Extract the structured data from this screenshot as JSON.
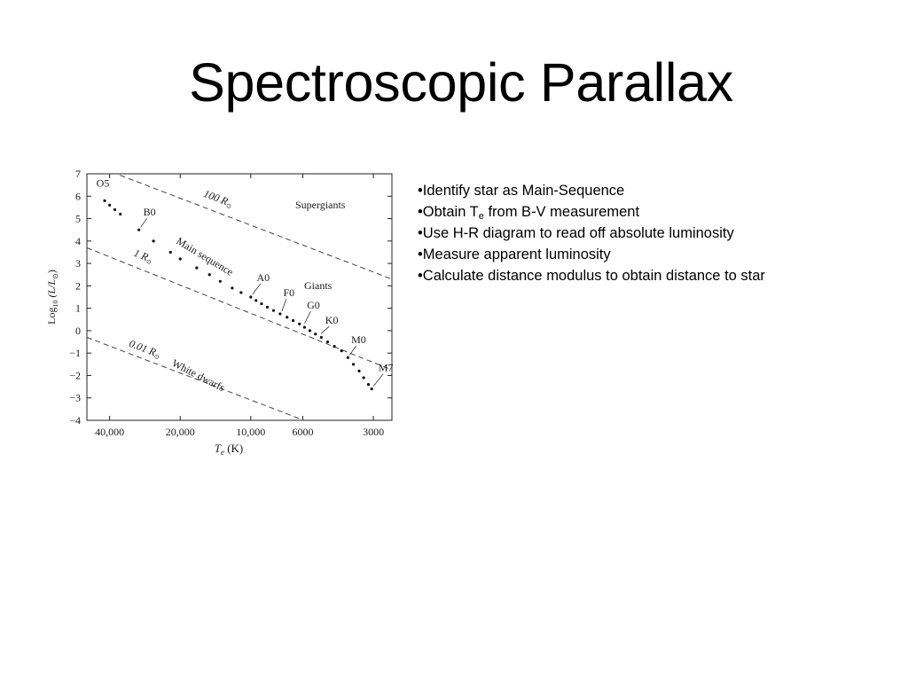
{
  "slide": {
    "title": "Spectroscopic Parallax"
  },
  "bullets": [
    {
      "prefix": "•Identify star as Main-Sequence"
    },
    {
      "prefix": "•Obtain T",
      "sub": "e",
      "suffix": " from B-V measurement"
    },
    {
      "prefix": "•Use H-R diagram to read off absolute luminosity"
    },
    {
      "prefix": "•Measure apparent luminosity"
    },
    {
      "prefix": "•Calculate distance modulus to obtain distance to star"
    }
  ],
  "chart_data": {
    "type": "scatter",
    "title": "",
    "xlabel": {
      "main": "T",
      "sub": "e",
      "unit": " (K)"
    },
    "ylabel": {
      "pre": "Log",
      "sub10": "10",
      "mid": " (L/L",
      "sun": "⊙",
      "post": ")"
    },
    "x_scale": "log, reversed",
    "xlim": [
      50000,
      2500
    ],
    "ylim": [
      -4,
      7
    ],
    "x_ticks": [
      40000,
      20000,
      10000,
      6000,
      3000
    ],
    "x_tick_labels": [
      "40,000",
      "20,000",
      "10,000",
      "6000",
      "3000"
    ],
    "y_ticks": [
      7,
      6,
      5,
      4,
      3,
      2,
      1,
      0,
      -1,
      -2,
      -3,
      -4
    ],
    "y_tick_labels": [
      "7",
      "6",
      "5",
      "4",
      "3",
      "2",
      "1",
      "0",
      "−1",
      "−2",
      "−3",
      "−4"
    ],
    "grid": false,
    "series": [
      {
        "values": [
          {
            "x": 42000,
            "y": 5.8
          },
          {
            "x": 40000,
            "y": 5.6
          },
          {
            "x": 38000,
            "y": 5.4
          },
          {
            "x": 36000,
            "y": 5.2
          },
          {
            "x": 30000,
            "y": 4.5
          },
          {
            "x": 26000,
            "y": 4.0
          },
          {
            "x": 22000,
            "y": 3.5
          },
          {
            "x": 20000,
            "y": 3.2
          },
          {
            "x": 17000,
            "y": 2.8
          },
          {
            "x": 15000,
            "y": 2.5
          },
          {
            "x": 13500,
            "y": 2.2
          },
          {
            "x": 12000,
            "y": 1.9
          },
          {
            "x": 11000,
            "y": 1.7
          },
          {
            "x": 10000,
            "y": 1.5
          },
          {
            "x": 9500,
            "y": 1.35
          },
          {
            "x": 9000,
            "y": 1.2
          },
          {
            "x": 8500,
            "y": 1.05
          },
          {
            "x": 8000,
            "y": 0.9
          },
          {
            "x": 7500,
            "y": 0.75
          },
          {
            "x": 7000,
            "y": 0.6
          },
          {
            "x": 6600,
            "y": 0.45
          },
          {
            "x": 6200,
            "y": 0.3
          },
          {
            "x": 5900,
            "y": 0.15
          },
          {
            "x": 5600,
            "y": 0.0
          },
          {
            "x": 5300,
            "y": -0.15
          },
          {
            "x": 5000,
            "y": -0.3
          },
          {
            "x": 4700,
            "y": -0.5
          },
          {
            "x": 4400,
            "y": -0.7
          },
          {
            "x": 4100,
            "y": -0.9
          },
          {
            "x": 3850,
            "y": -1.2
          },
          {
            "x": 3650,
            "y": -1.5
          },
          {
            "x": 3450,
            "y": -1.8
          },
          {
            "x": 3300,
            "y": -2.1
          },
          {
            "x": 3150,
            "y": -2.4
          },
          {
            "x": 3050,
            "y": -2.6
          }
        ]
      }
    ],
    "radius_lines": [
      {
        "label": "100 R",
        "sun": "⊙",
        "points": [
          {
            "x": 50000,
            "y": 7.5
          },
          {
            "x": 2500,
            "y": 2.3
          }
        ]
      },
      {
        "label": "1 R",
        "sun": "⊙",
        "points": [
          {
            "x": 50000,
            "y": 3.7
          },
          {
            "x": 2500,
            "y": -1.75
          }
        ]
      },
      {
        "label": "0.01 R",
        "sun": "⊙",
        "points": [
          {
            "x": 50000,
            "y": -0.3
          },
          {
            "x": 2500,
            "y": -5.5
          }
        ]
      }
    ],
    "region_labels": [
      "Supergiants",
      "Giants",
      "Main sequence",
      "White dwarfs"
    ],
    "spectral_labels": [
      {
        "text": "O5",
        "x": 42000,
        "y": 5.8
      },
      {
        "text": "B0",
        "x": 30000,
        "y": 4.5
      },
      {
        "text": "A0",
        "x": 10000,
        "y": 1.5
      },
      {
        "text": "F0",
        "x": 7500,
        "y": 0.75
      },
      {
        "text": "G0",
        "x": 6000,
        "y": 0.2
      },
      {
        "text": "K0",
        "x": 5100,
        "y": -0.25
      },
      {
        "text": "M0",
        "x": 3850,
        "y": -1.2
      },
      {
        "text": "M7",
        "x": 3050,
        "y": -2.6
      }
    ]
  }
}
